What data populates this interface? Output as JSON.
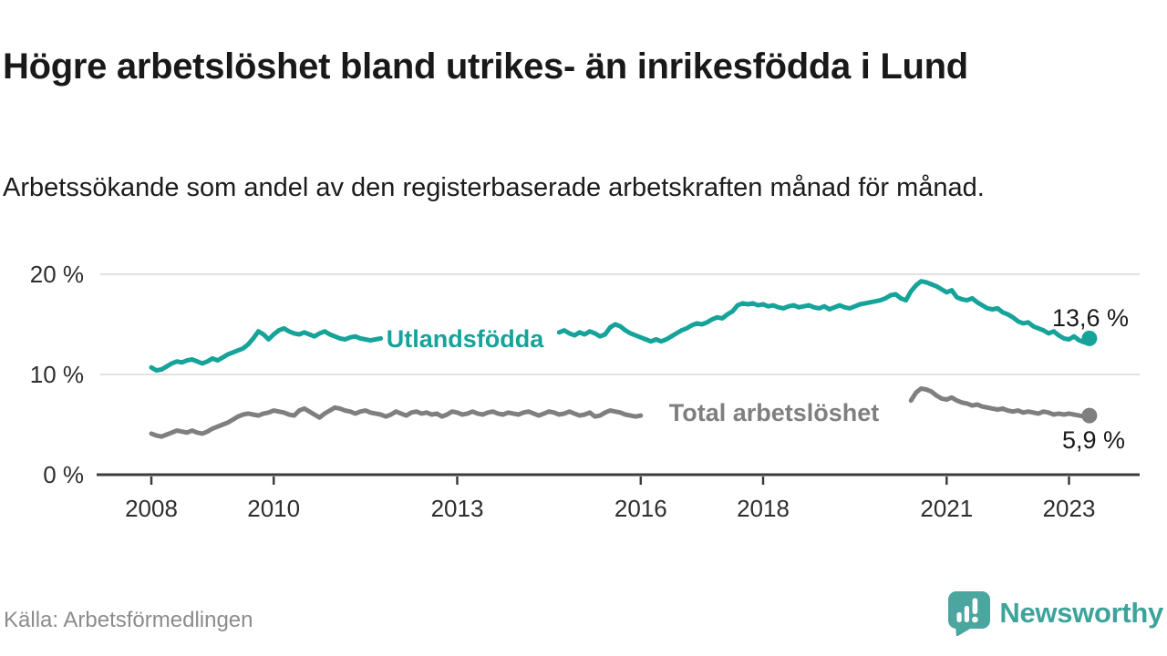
{
  "title": "Högre arbetslöshet bland utrikes- än inrikesfödda i Lund",
  "subtitle": "Arbetssökande som andel av den registerbaserade arbetskraften månad för månad.",
  "source": "Källa: Arbetsförmedlingen",
  "brand": {
    "name": "Newsworthy",
    "color": "#3da49b"
  },
  "chart_data": {
    "type": "line",
    "title": "Högre arbetslöshet bland utrikes- än inrikesfödda i Lund",
    "unit": "%",
    "grid": true,
    "x_axis": {
      "range": [
        2008,
        2023.45
      ],
      "ticks": [
        2008,
        2010,
        2013,
        2016,
        2018,
        2021,
        2023
      ]
    },
    "y_axis": {
      "range": [
        0,
        21
      ],
      "ticks": [
        {
          "value": 0,
          "label": "0 %"
        },
        {
          "value": 10,
          "label": "10 %"
        },
        {
          "value": 20,
          "label": "20 %"
        }
      ]
    },
    "series": [
      {
        "name": "Utlandsfödda",
        "label": "Utlandsfödda",
        "color": "#15a39a",
        "end_value": 13.6,
        "end_label": "13,6 %",
        "segments": [
          {
            "start_year": 2008.0,
            "step_years": 0.083333,
            "values": [
              10.7,
              10.4,
              10.5,
              10.8,
              11.1,
              11.3,
              11.2,
              11.4,
              11.5,
              11.3,
              11.1,
              11.3,
              11.6,
              11.4,
              11.7,
              12.0,
              12.2,
              12.4,
              12.6,
              13.0,
              13.6,
              14.3,
              14.0,
              13.5,
              14.0,
              14.4,
              14.6,
              14.3,
              14.1,
              14.0,
              14.2,
              14.0,
              13.8,
              14.1,
              14.3,
              14.0,
              13.8,
              13.6,
              13.5,
              13.7,
              13.8,
              13.6,
              13.5,
              13.4,
              13.5,
              13.6
            ]
          },
          {
            "start_year": 2014.6667,
            "step_years": 0.083333,
            "values": [
              14.2,
              14.4,
              14.1,
              13.9,
              14.2,
              14.0,
              14.3,
              14.1,
              13.8,
              14.0,
              14.7,
              15.0,
              14.8,
              14.4,
              14.1,
              13.9,
              13.7,
              13.5,
              13.3,
              13.5,
              13.3,
              13.5,
              13.8,
              14.1,
              14.4,
              14.6,
              14.9,
              15.1,
              15.0,
              15.2,
              15.5,
              15.7,
              15.6,
              16.0,
              16.3,
              16.9,
              17.1,
              17.0,
              17.1,
              16.9,
              17.0,
              16.8,
              16.9,
              16.7,
              16.6,
              16.8,
              16.9,
              16.7,
              16.8,
              16.9,
              16.7,
              16.6,
              16.8,
              16.5,
              16.7,
              16.9,
              16.7,
              16.6,
              16.8,
              17.0,
              17.1,
              17.2,
              17.3,
              17.4,
              17.6,
              17.9,
              18.0,
              17.6,
              17.4,
              18.3,
              18.9,
              19.3,
              19.2,
              19.0,
              18.8,
              18.5,
              18.2,
              18.4,
              17.7,
              17.5,
              17.4,
              17.6,
              17.2,
              16.9,
              16.6,
              16.5,
              16.6,
              16.2,
              16.0,
              15.7,
              15.3,
              15.1,
              15.2,
              14.8,
              14.6,
              14.4,
              14.1,
              14.3,
              13.9,
              13.6,
              13.5,
              13.8,
              13.4,
              13.2,
              13.6
            ]
          }
        ]
      },
      {
        "name": "Total arbetslöshet",
        "label": "Total arbetslöshet",
        "color": "#7f7f7f",
        "end_value": 5.9,
        "end_label": "5,9 %",
        "segments": [
          {
            "start_year": 2008.0,
            "step_years": 0.083333,
            "values": [
              4.1,
              3.9,
              3.8,
              4.0,
              4.2,
              4.4,
              4.3,
              4.2,
              4.4,
              4.2,
              4.1,
              4.3,
              4.6,
              4.8,
              5.0,
              5.2,
              5.5,
              5.8,
              6.0,
              6.1,
              6.0,
              5.9,
              6.1,
              6.2,
              6.4,
              6.3,
              6.2,
              6.0,
              5.9,
              6.4,
              6.6,
              6.3,
              6.0,
              5.7,
              6.1,
              6.4,
              6.7,
              6.6,
              6.4,
              6.3,
              6.1,
              6.3,
              6.4,
              6.2,
              6.1,
              6.0,
              5.8,
              6.0,
              6.3,
              6.1,
              5.9,
              6.2,
              6.3,
              6.1,
              6.2,
              6.0,
              6.1,
              5.8,
              6.0,
              6.3,
              6.2,
              6.0,
              6.1,
              6.3,
              6.1,
              6.0,
              6.2,
              6.3,
              6.1,
              6.0,
              6.2,
              6.1,
              6.0,
              6.2,
              6.3,
              6.1,
              5.9,
              6.1,
              6.3,
              6.2,
              6.0,
              6.1,
              6.3,
              6.1,
              5.9,
              6.0,
              6.2,
              5.8,
              5.9,
              6.2,
              6.4,
              6.3,
              6.2,
              6.0,
              5.9,
              5.8,
              5.9
            ]
          },
          {
            "start_year": 2020.4167,
            "step_years": 0.083333,
            "values": [
              7.4,
              8.2,
              8.6,
              8.5,
              8.3,
              7.9,
              7.6,
              7.5,
              7.7,
              7.4,
              7.2,
              7.1,
              6.9,
              7.0,
              6.8,
              6.7,
              6.6,
              6.5,
              6.6,
              6.4,
              6.3,
              6.4,
              6.2,
              6.3,
              6.2,
              6.1,
              6.3,
              6.2,
              6.0,
              6.1,
              6.0,
              6.1,
              6.0,
              5.9,
              5.8,
              5.9
            ]
          }
        ]
      }
    ]
  }
}
